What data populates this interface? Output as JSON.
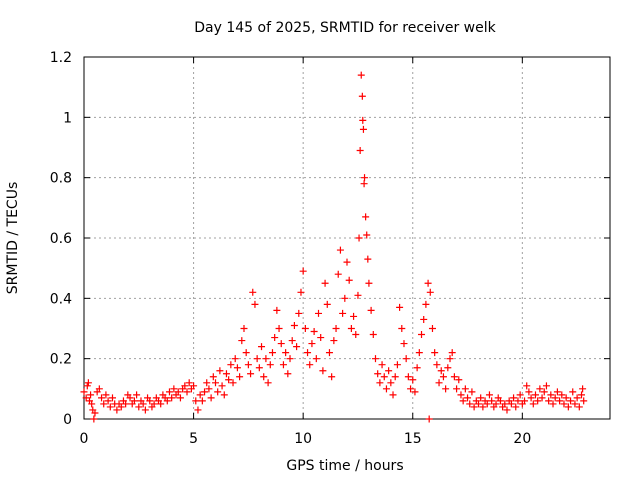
{
  "chart_data": {
    "type": "scatter",
    "title": "Day 145 of 2025, SRMTID for receiver welk",
    "xlabel": "GPS time / hours",
    "ylabel": "SRMTID / TECUs",
    "xlim": [
      0,
      24
    ],
    "ylim": [
      0,
      1.2
    ],
    "xticks": [
      0,
      5,
      10,
      15,
      20
    ],
    "xtick_labels": [
      "0",
      "5",
      "10",
      "15",
      "20"
    ],
    "yticks": [
      0,
      0.2,
      0.4,
      0.6,
      0.8,
      1.0,
      1.2
    ],
    "ytick_labels": [
      "0",
      "0.2",
      "0.4",
      "0.6",
      "0.8",
      "1",
      "1.2"
    ],
    "grid": true,
    "marker": "+",
    "color": "#ff0000",
    "series": [
      {
        "name": "SRMTID",
        "points": [
          [
            0.0,
            0.09
          ],
          [
            0.1,
            0.07
          ],
          [
            0.15,
            0.11
          ],
          [
            0.2,
            0.12
          ],
          [
            0.25,
            0.06
          ],
          [
            0.3,
            0.08
          ],
          [
            0.35,
            0.05
          ],
          [
            0.4,
            0.03
          ],
          [
            0.45,
            0.0
          ],
          [
            0.5,
            0.02
          ],
          [
            0.6,
            0.09
          ],
          [
            0.7,
            0.1
          ],
          [
            0.8,
            0.07
          ],
          [
            0.9,
            0.05
          ],
          [
            1.0,
            0.08
          ],
          [
            1.1,
            0.06
          ],
          [
            1.2,
            0.04
          ],
          [
            1.3,
            0.07
          ],
          [
            1.4,
            0.05
          ],
          [
            1.5,
            0.03
          ],
          [
            1.6,
            0.05
          ],
          [
            1.7,
            0.04
          ],
          [
            1.8,
            0.06
          ],
          [
            1.9,
            0.05
          ],
          [
            2.0,
            0.08
          ],
          [
            2.1,
            0.07
          ],
          [
            2.2,
            0.05
          ],
          [
            2.3,
            0.06
          ],
          [
            2.4,
            0.08
          ],
          [
            2.5,
            0.04
          ],
          [
            2.6,
            0.06
          ],
          [
            2.7,
            0.05
          ],
          [
            2.8,
            0.03
          ],
          [
            2.9,
            0.07
          ],
          [
            3.0,
            0.06
          ],
          [
            3.1,
            0.04
          ],
          [
            3.2,
            0.05
          ],
          [
            3.3,
            0.07
          ],
          [
            3.4,
            0.06
          ],
          [
            3.5,
            0.05
          ],
          [
            3.6,
            0.08
          ],
          [
            3.7,
            0.07
          ],
          [
            3.8,
            0.06
          ],
          [
            3.9,
            0.09
          ],
          [
            4.0,
            0.07
          ],
          [
            4.1,
            0.1
          ],
          [
            4.2,
            0.08
          ],
          [
            4.3,
            0.09
          ],
          [
            4.4,
            0.07
          ],
          [
            4.5,
            0.1
          ],
          [
            4.6,
            0.11
          ],
          [
            4.7,
            0.09
          ],
          [
            4.8,
            0.12
          ],
          [
            4.9,
            0.1
          ],
          [
            5.0,
            0.11
          ],
          [
            5.1,
            0.06
          ],
          [
            5.2,
            0.03
          ],
          [
            5.3,
            0.08
          ],
          [
            5.4,
            0.06
          ],
          [
            5.5,
            0.09
          ],
          [
            5.6,
            0.12
          ],
          [
            5.7,
            0.1
          ],
          [
            5.8,
            0.07
          ],
          [
            5.9,
            0.14
          ],
          [
            6.0,
            0.12
          ],
          [
            6.1,
            0.09
          ],
          [
            6.2,
            0.16
          ],
          [
            6.3,
            0.11
          ],
          [
            6.4,
            0.08
          ],
          [
            6.5,
            0.15
          ],
          [
            6.6,
            0.13
          ],
          [
            6.7,
            0.18
          ],
          [
            6.8,
            0.12
          ],
          [
            6.9,
            0.2
          ],
          [
            7.0,
            0.17
          ],
          [
            7.1,
            0.14
          ],
          [
            7.2,
            0.26
          ],
          [
            7.3,
            0.3
          ],
          [
            7.4,
            0.22
          ],
          [
            7.5,
            0.18
          ],
          [
            7.6,
            0.15
          ],
          [
            7.7,
            0.42
          ],
          [
            7.8,
            0.38
          ],
          [
            7.9,
            0.2
          ],
          [
            8.0,
            0.17
          ],
          [
            8.1,
            0.24
          ],
          [
            8.2,
            0.14
          ],
          [
            8.3,
            0.2
          ],
          [
            8.4,
            0.12
          ],
          [
            8.5,
            0.18
          ],
          [
            8.6,
            0.22
          ],
          [
            8.7,
            0.27
          ],
          [
            8.8,
            0.36
          ],
          [
            8.9,
            0.3
          ],
          [
            9.0,
            0.25
          ],
          [
            9.1,
            0.18
          ],
          [
            9.2,
            0.22
          ],
          [
            9.3,
            0.15
          ],
          [
            9.4,
            0.2
          ],
          [
            9.5,
            0.26
          ],
          [
            9.6,
            0.31
          ],
          [
            9.7,
            0.24
          ],
          [
            9.8,
            0.35
          ],
          [
            9.9,
            0.42
          ],
          [
            10.0,
            0.49
          ],
          [
            10.1,
            0.3
          ],
          [
            10.2,
            0.22
          ],
          [
            10.3,
            0.18
          ],
          [
            10.4,
            0.25
          ],
          [
            10.5,
            0.29
          ],
          [
            10.6,
            0.2
          ],
          [
            10.7,
            0.35
          ],
          [
            10.8,
            0.27
          ],
          [
            10.9,
            0.16
          ],
          [
            11.0,
            0.45
          ],
          [
            11.1,
            0.38
          ],
          [
            11.2,
            0.22
          ],
          [
            11.3,
            0.14
          ],
          [
            11.4,
            0.26
          ],
          [
            11.5,
            0.3
          ],
          [
            11.6,
            0.48
          ],
          [
            11.7,
            0.56
          ],
          [
            11.8,
            0.35
          ],
          [
            11.9,
            0.4
          ],
          [
            12.0,
            0.52
          ],
          [
            12.1,
            0.46
          ],
          [
            12.2,
            0.3
          ],
          [
            12.3,
            0.34
          ],
          [
            12.4,
            0.28
          ],
          [
            12.5,
            0.41
          ],
          [
            12.55,
            0.6
          ],
          [
            12.6,
            0.89
          ],
          [
            12.65,
            1.14
          ],
          [
            12.7,
            1.07
          ],
          [
            12.72,
            0.99
          ],
          [
            12.75,
            0.96
          ],
          [
            12.78,
            0.78
          ],
          [
            12.8,
            0.8
          ],
          [
            12.85,
            0.67
          ],
          [
            12.9,
            0.61
          ],
          [
            12.95,
            0.53
          ],
          [
            13.0,
            0.45
          ],
          [
            13.1,
            0.36
          ],
          [
            13.2,
            0.28
          ],
          [
            13.3,
            0.2
          ],
          [
            13.4,
            0.15
          ],
          [
            13.5,
            0.12
          ],
          [
            13.6,
            0.18
          ],
          [
            13.7,
            0.14
          ],
          [
            13.8,
            0.1
          ],
          [
            13.9,
            0.16
          ],
          [
            14.0,
            0.12
          ],
          [
            14.1,
            0.08
          ],
          [
            14.2,
            0.14
          ],
          [
            14.3,
            0.18
          ],
          [
            14.4,
            0.37
          ],
          [
            14.5,
            0.3
          ],
          [
            14.6,
            0.25
          ],
          [
            14.7,
            0.2
          ],
          [
            14.8,
            0.14
          ],
          [
            14.9,
            0.1
          ],
          [
            15.0,
            0.13
          ],
          [
            15.1,
            0.09
          ],
          [
            15.2,
            0.17
          ],
          [
            15.3,
            0.22
          ],
          [
            15.4,
            0.28
          ],
          [
            15.5,
            0.33
          ],
          [
            15.6,
            0.38
          ],
          [
            15.7,
            0.45
          ],
          [
            15.75,
            0.0
          ],
          [
            15.8,
            0.42
          ],
          [
            15.9,
            0.3
          ],
          [
            16.0,
            0.22
          ],
          [
            16.1,
            0.18
          ],
          [
            16.2,
            0.12
          ],
          [
            16.3,
            0.16
          ],
          [
            16.4,
            0.14
          ],
          [
            16.5,
            0.1
          ],
          [
            16.6,
            0.17
          ],
          [
            16.7,
            0.2
          ],
          [
            16.8,
            0.22
          ],
          [
            16.9,
            0.14
          ],
          [
            17.0,
            0.1
          ],
          [
            17.1,
            0.13
          ],
          [
            17.2,
            0.08
          ],
          [
            17.3,
            0.06
          ],
          [
            17.4,
            0.1
          ],
          [
            17.5,
            0.07
          ],
          [
            17.6,
            0.05
          ],
          [
            17.7,
            0.09
          ],
          [
            17.8,
            0.04
          ],
          [
            17.9,
            0.06
          ],
          [
            18.0,
            0.05
          ],
          [
            18.1,
            0.07
          ],
          [
            18.2,
            0.04
          ],
          [
            18.3,
            0.06
          ],
          [
            18.4,
            0.05
          ],
          [
            18.5,
            0.08
          ],
          [
            18.6,
            0.06
          ],
          [
            18.7,
            0.04
          ],
          [
            18.8,
            0.05
          ],
          [
            18.9,
            0.07
          ],
          [
            19.0,
            0.06
          ],
          [
            19.1,
            0.04
          ],
          [
            19.2,
            0.05
          ],
          [
            19.3,
            0.03
          ],
          [
            19.4,
            0.06
          ],
          [
            19.5,
            0.05
          ],
          [
            19.6,
            0.07
          ],
          [
            19.7,
            0.04
          ],
          [
            19.8,
            0.06
          ],
          [
            19.9,
            0.08
          ],
          [
            20.0,
            0.05
          ],
          [
            20.1,
            0.06
          ],
          [
            20.2,
            0.11
          ],
          [
            20.3,
            0.09
          ],
          [
            20.4,
            0.07
          ],
          [
            20.5,
            0.05
          ],
          [
            20.6,
            0.08
          ],
          [
            20.7,
            0.06
          ],
          [
            20.8,
            0.1
          ],
          [
            20.9,
            0.07
          ],
          [
            21.0,
            0.09
          ],
          [
            21.1,
            0.11
          ],
          [
            21.2,
            0.06
          ],
          [
            21.3,
            0.08
          ],
          [
            21.4,
            0.05
          ],
          [
            21.5,
            0.07
          ],
          [
            21.6,
            0.09
          ],
          [
            21.7,
            0.06
          ],
          [
            21.8,
            0.08
          ],
          [
            21.9,
            0.05
          ],
          [
            22.0,
            0.07
          ],
          [
            22.1,
            0.04
          ],
          [
            22.2,
            0.06
          ],
          [
            22.3,
            0.09
          ],
          [
            22.4,
            0.05
          ],
          [
            22.5,
            0.07
          ],
          [
            22.6,
            0.04
          ],
          [
            22.7,
            0.08
          ],
          [
            22.75,
            0.1
          ],
          [
            22.8,
            0.06
          ]
        ]
      }
    ]
  }
}
